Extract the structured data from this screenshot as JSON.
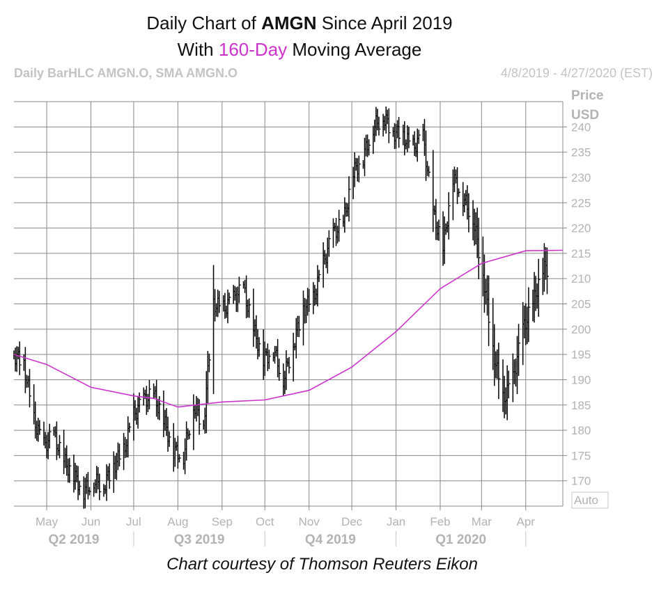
{
  "title": {
    "prefix": "Daily Chart of ",
    "ticker": "AMGN",
    "suffix": " Since April 2019",
    "line2_prefix": "With ",
    "line2_accent": "160-Day",
    "line2_suffix": " Moving Average"
  },
  "header": {
    "left": "Daily BarHLC AMGN.O, SMA AMGN.O",
    "right": "4/8/2019 - 4/27/2020 (EST)"
  },
  "credit": "Chart courtesy of Thomson Reuters Eikon",
  "colors": {
    "price": "#000000",
    "sma": "#cc33cc",
    "grid": "#888888",
    "axis_text": "#b3b3b3"
  },
  "chart_data": {
    "type": "line",
    "y_axis": {
      "unit_label_1": "Price",
      "unit_label_2": "USD",
      "ticks": [
        170,
        175,
        180,
        185,
        190,
        195,
        200,
        205,
        210,
        215,
        220,
        225,
        230,
        235,
        240
      ],
      "range": [
        165,
        245
      ],
      "auto_label": "Auto",
      "position": "right"
    },
    "x_axis": {
      "months": [
        "May",
        "Jun",
        "Jul",
        "Aug",
        "Sep",
        "Oct",
        "Nov",
        "Dec",
        "Jan",
        "Feb",
        "Mar",
        "Apr"
      ],
      "quarters": [
        "Q2 2019",
        "Q3 2019",
        "Q4 2019",
        "Q1 2020"
      ],
      "date_range": [
        "2019-04-08",
        "2020-04-27"
      ]
    },
    "series": [
      {
        "name": "AMGN.O",
        "kind": "hlc_bar",
        "points": [
          [
            "2019-04-08",
            195
          ],
          [
            "2019-04-15",
            193
          ],
          [
            "2019-04-22",
            182
          ],
          [
            "2019-04-29",
            177
          ],
          [
            "2019-05-06",
            179
          ],
          [
            "2019-05-13",
            174
          ],
          [
            "2019-05-20",
            171
          ],
          [
            "2019-05-27",
            168
          ],
          [
            "2019-06-03",
            170
          ],
          [
            "2019-06-10",
            169
          ],
          [
            "2019-06-17",
            173
          ],
          [
            "2019-06-24",
            176
          ],
          [
            "2019-07-01",
            183
          ],
          [
            "2019-07-08",
            186
          ],
          [
            "2019-07-15",
            187
          ],
          [
            "2019-07-22",
            182
          ],
          [
            "2019-07-29",
            176
          ],
          [
            "2019-08-05",
            175
          ],
          [
            "2019-08-12",
            185
          ],
          [
            "2019-08-19",
            181
          ],
          [
            "2019-08-26",
            205
          ],
          [
            "2019-09-02",
            204
          ],
          [
            "2019-09-09",
            206
          ],
          [
            "2019-09-16",
            208
          ],
          [
            "2019-09-23",
            200
          ],
          [
            "2019-09-30",
            194
          ],
          [
            "2019-10-07",
            196
          ],
          [
            "2019-10-14",
            190
          ],
          [
            "2019-10-21",
            197
          ],
          [
            "2019-10-28",
            204
          ],
          [
            "2019-11-04",
            206
          ],
          [
            "2019-11-11",
            213
          ],
          [
            "2019-11-18",
            219
          ],
          [
            "2019-11-25",
            221
          ],
          [
            "2019-12-02",
            231
          ],
          [
            "2019-12-09",
            234
          ],
          [
            "2019-12-16",
            240
          ],
          [
            "2019-12-23",
            242
          ],
          [
            "2019-12-30",
            239
          ],
          [
            "2020-01-06",
            238
          ],
          [
            "2020-01-13",
            236
          ],
          [
            "2020-01-20",
            238
          ],
          [
            "2020-01-27",
            223
          ],
          [
            "2020-02-03",
            216
          ],
          [
            "2020-02-10",
            230
          ],
          [
            "2020-02-17",
            226
          ],
          [
            "2020-02-24",
            222
          ],
          [
            "2020-03-02",
            211
          ],
          [
            "2020-03-09",
            196
          ],
          [
            "2020-03-16",
            186
          ],
          [
            "2020-03-23",
            190
          ],
          [
            "2020-03-30",
            200
          ],
          [
            "2020-04-06",
            205
          ],
          [
            "2020-04-13",
            212
          ]
        ]
      },
      {
        "name": "SMA AMGN.O",
        "kind": "line",
        "points": [
          [
            "2019-04-08",
            195
          ],
          [
            "2019-05-01",
            193
          ],
          [
            "2019-06-01",
            188.5
          ],
          [
            "2019-07-01",
            186.8
          ],
          [
            "2019-07-15",
            186.3
          ],
          [
            "2019-08-01",
            184.6
          ],
          [
            "2019-09-01",
            185.6
          ],
          [
            "2019-10-01",
            186.0
          ],
          [
            "2019-11-01",
            187.9
          ],
          [
            "2019-12-01",
            192.5
          ],
          [
            "2020-01-01",
            199.5
          ],
          [
            "2020-02-01",
            208.0
          ],
          [
            "2020-03-01",
            213.0
          ],
          [
            "2020-04-01",
            215.5
          ],
          [
            "2020-04-27",
            215.6
          ]
        ]
      }
    ]
  }
}
